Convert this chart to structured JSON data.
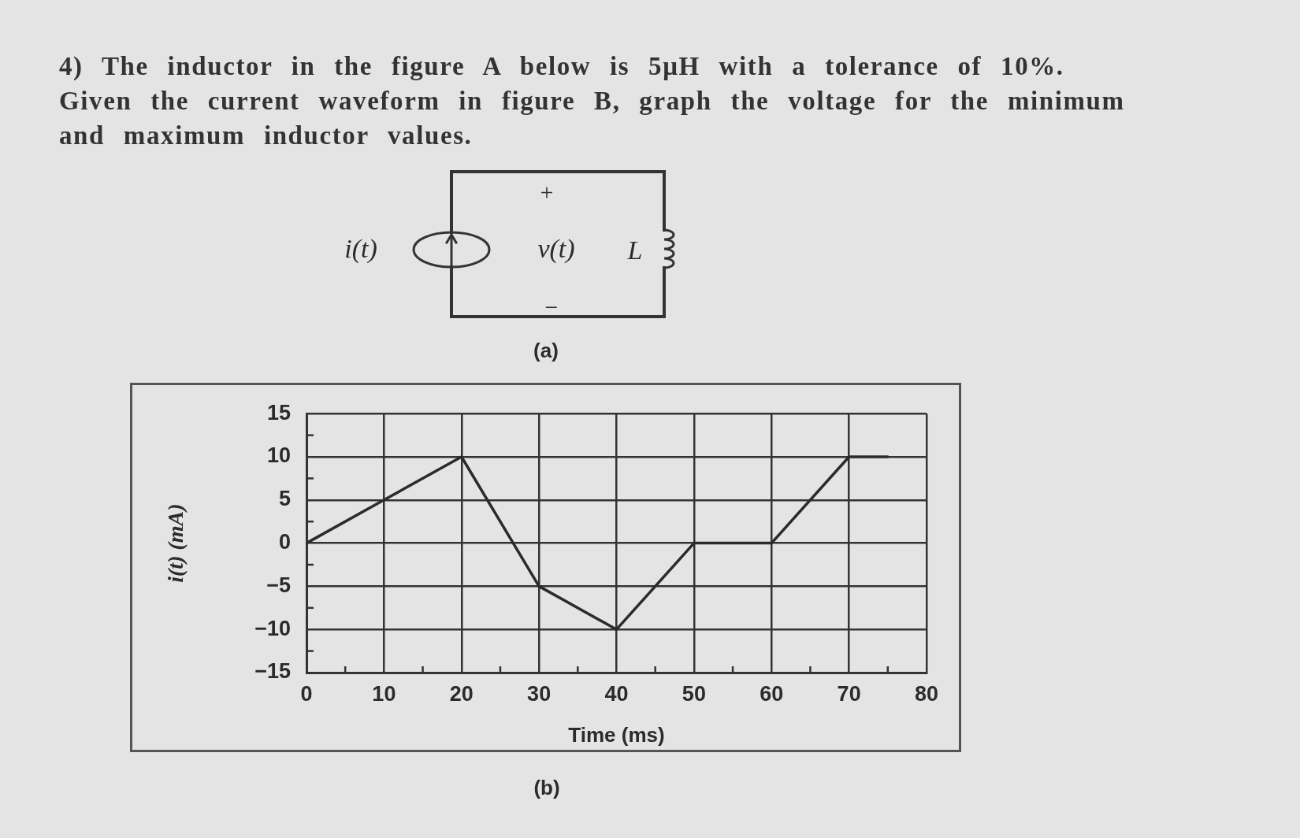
{
  "chart_data": {
    "type": "line",
    "title": "4) The inductor in the figure A below is 5μH with a tolerance of 10%. Given the current waveform in figure B, graph the voltage for the minimum and maximum inductor values.",
    "xlabel": "Time (ms)",
    "ylabel": "i(t) (mA)",
    "x": [
      0,
      10,
      20,
      30,
      40,
      50,
      60,
      70,
      75
    ],
    "series": [
      {
        "color": "#2b2b2b",
        "values": [
          0,
          5,
          10,
          -5,
          -10,
          0,
          0,
          10,
          10
        ]
      }
    ],
    "xlim": [
      0,
      80
    ],
    "ylim": [
      -15,
      15
    ],
    "xticks": [
      0,
      {
        "value": 5,
        "label": null
      },
      10,
      {
        "value": 15,
        "label": null
      },
      20,
      {
        "value": 25,
        "label": null
      },
      30,
      {
        "value": 35,
        "label": null
      },
      40,
      {
        "value": 45,
        "label": null
      },
      50,
      {
        "value": 55,
        "label": null
      },
      60,
      {
        "value": 65,
        "label": null
      },
      70,
      {
        "value": 75,
        "label": null
      },
      80
    ],
    "yticks": [
      {
        "value": -15,
        "label": "−15"
      },
      {
        "value": -12.5,
        "label": null
      },
      {
        "value": -10,
        "label": "−10"
      },
      {
        "value": -7.5,
        "label": null
      },
      {
        "value": -5,
        "label": "−5"
      },
      {
        "value": -2.5,
        "label": null
      },
      0,
      {
        "value": 2.5,
        "label": null
      },
      5,
      {
        "value": 7.5,
        "label": null
      },
      10,
      {
        "value": 12.5,
        "label": null
      },
      15
    ],
    "grid": true,
    "marker": "none",
    "line_style": "solid",
    "annotations": [
      "+",
      "i(t)",
      "v(t)",
      "L",
      "−",
      "(a)",
      "(b)"
    ]
  }
}
